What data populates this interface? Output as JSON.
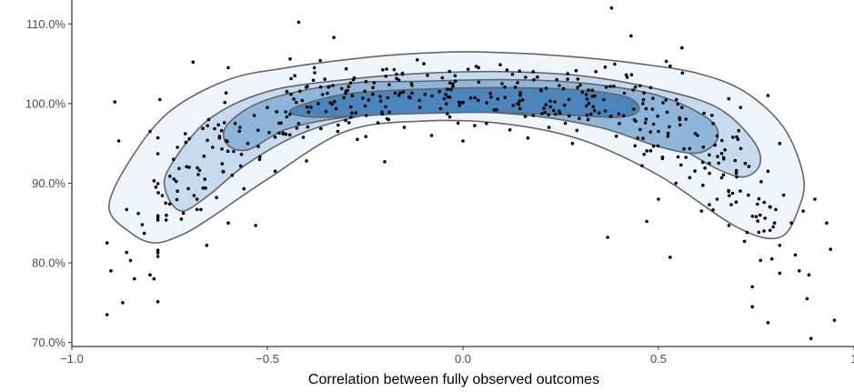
{
  "chart_data": {
    "type": "scatter",
    "title": "",
    "xlabel": "Correlation between fully observed outcomes",
    "ylabel": "",
    "xlim": [
      -1.0,
      1.0
    ],
    "ylim": [
      69.5,
      113.0
    ],
    "x_ticks": [
      -1.0,
      -0.5,
      0.0,
      0.5,
      1.0
    ],
    "x_tick_labels": [
      "−1.0",
      "−0.5",
      "0.0",
      "0.5",
      "1"
    ],
    "y_ticks": [
      70,
      80,
      90,
      100,
      110
    ],
    "y_tick_labels": [
      "70.0%",
      "80.0%",
      "90.0%",
      "100.0%",
      "110.0%"
    ],
    "grid": false,
    "legend": "none",
    "density_fill_colors": [
      "#f0f5fb",
      "#c6dbef",
      "#8db6da",
      "#4a85be"
    ],
    "contour_line_color": "#666666",
    "point_color": "#000000",
    "density_levels": [
      {
        "x": [
          -0.905,
          -0.85,
          -0.75,
          -0.6,
          -0.45,
          -0.3,
          -0.15,
          0.0,
          0.15,
          0.3,
          0.45,
          0.6,
          0.72,
          0.82,
          0.87,
          0.86,
          0.81,
          0.7,
          0.5,
          0.3,
          0.1,
          -0.1,
          -0.3,
          -0.5,
          -0.65,
          -0.72,
          -0.79,
          -0.85
        ],
        "y": [
          87,
          93,
          99,
          103,
          104.5,
          105.5,
          106.2,
          106.5,
          106.3,
          105.8,
          105,
          103.8,
          101.5,
          97,
          91,
          87,
          83.2,
          84.5,
          91,
          95.5,
          97.5,
          97.8,
          96.5,
          90.5,
          85.5,
          83.5,
          82.5,
          83.8
        ]
      },
      {
        "x": [
          -0.75,
          -0.65,
          -0.5,
          -0.3,
          -0.1,
          0.1,
          0.3,
          0.5,
          0.65,
          0.74,
          0.76,
          0.72,
          0.65,
          0.55,
          0.4,
          0.2,
          0.0,
          -0.2,
          -0.4,
          -0.55,
          -0.65,
          -0.72,
          -0.76
        ],
        "y": [
          92,
          98,
          101.5,
          103,
          103.8,
          104,
          103.5,
          101.8,
          99.5,
          95.5,
          92.5,
          90.8,
          91.8,
          94.5,
          97.5,
          99.2,
          99.5,
          99,
          96.5,
          92.5,
          88.5,
          86.5,
          89
        ]
      },
      {
        "x": [
          -0.6,
          -0.5,
          -0.3,
          -0.1,
          0.1,
          0.3,
          0.5,
          0.63,
          0.65,
          0.6,
          0.5,
          0.35,
          0.15,
          -0.1,
          -0.3,
          -0.45,
          -0.55,
          -0.605
        ],
        "y": [
          97.5,
          100.5,
          102.5,
          102.8,
          103,
          102.6,
          101,
          98,
          95.5,
          93.8,
          94.6,
          97,
          98.6,
          99,
          98.3,
          96.8,
          94.2,
          95
        ]
      },
      {
        "x": [
          -0.43,
          -0.3,
          -0.1,
          0.1,
          0.3,
          0.42,
          0.45,
          0.4,
          0.25,
          0.05,
          -0.15,
          -0.35,
          -0.43
        ],
        "y": [
          99.5,
          101.2,
          101.8,
          102,
          101.7,
          100.8,
          99.2,
          98.3,
          98.6,
          98.9,
          98.7,
          98.3,
          98.6
        ]
      }
    ],
    "points": [
      [
        -0.91,
        73.5
      ],
      [
        -0.9,
        79
      ],
      [
        -0.91,
        82.5
      ],
      [
        -0.89,
        100.2
      ],
      [
        -0.88,
        95.3
      ],
      [
        -0.87,
        75
      ],
      [
        -0.86,
        81.3
      ],
      [
        -0.85,
        80.3
      ],
      [
        -0.84,
        78
      ],
      [
        -0.83,
        86.2
      ],
      [
        -0.82,
        84.8
      ],
      [
        -0.815,
        83.7
      ],
      [
        -0.8,
        78.5
      ],
      [
        -0.79,
        78
      ],
      [
        -0.78,
        80.8
      ],
      [
        -0.785,
        89.5
      ],
      [
        -0.8,
        96.5
      ],
      [
        -0.775,
        100.5
      ],
      [
        -0.76,
        87.5
      ],
      [
        -0.74,
        93
      ],
      [
        -0.73,
        89
      ],
      [
        -0.72,
        85.5
      ],
      [
        -0.7,
        92
      ],
      [
        -0.68,
        88
      ],
      [
        -0.67,
        86.7
      ],
      [
        -0.66,
        90.5
      ],
      [
        -0.655,
        82.2
      ],
      [
        -0.64,
        94.5
      ],
      [
        -0.63,
        88.2
      ],
      [
        -0.6,
        85
      ],
      [
        -0.59,
        91
      ],
      [
        -0.57,
        97
      ],
      [
        -0.56,
        89.3
      ],
      [
        -0.55,
        95
      ],
      [
        -0.53,
        84.7
      ],
      [
        -0.52,
        93
      ],
      [
        -0.5,
        99.5
      ],
      [
        -0.48,
        91.5
      ],
      [
        -0.46,
        96.2
      ],
      [
        -0.45,
        101.5
      ],
      [
        -0.43,
        103.5
      ],
      [
        -0.42,
        97.5
      ],
      [
        -0.4,
        92.8
      ],
      [
        -0.38,
        104.5
      ],
      [
        -0.37,
        100
      ],
      [
        -0.35,
        99
      ],
      [
        -0.33,
        108.3
      ],
      [
        -0.32,
        96.5
      ],
      [
        -0.3,
        101.3
      ],
      [
        -0.28,
        103
      ],
      [
        -0.27,
        95.5
      ],
      [
        -0.25,
        99.7
      ],
      [
        -0.23,
        102
      ],
      [
        -0.21,
        100.3
      ],
      [
        -0.2,
        92.7
      ],
      [
        -0.19,
        98
      ],
      [
        -0.17,
        103.7
      ],
      [
        -0.15,
        97
      ],
      [
        -0.13,
        101.3
      ],
      [
        -0.11,
        99.5
      ],
      [
        -0.1,
        105
      ],
      [
        -0.08,
        96
      ],
      [
        -0.06,
        101.5
      ],
      [
        -0.04,
        98.7
      ],
      [
        -0.02,
        103.5
      ],
      [
        0.0,
        95.3
      ],
      [
        0.02,
        100.7
      ],
      [
        0.04,
        104.5
      ],
      [
        0.06,
        97.5
      ],
      [
        0.08,
        99.2
      ],
      [
        0.1,
        102.5
      ],
      [
        0.12,
        96.7
      ],
      [
        0.14,
        100
      ],
      [
        0.16,
        103.3
      ],
      [
        0.18,
        98.5
      ],
      [
        0.2,
        101.7
      ],
      [
        0.22,
        97
      ],
      [
        0.24,
        103
      ],
      [
        0.26,
        99.8
      ],
      [
        0.28,
        95
      ],
      [
        0.3,
        102.3
      ],
      [
        0.32,
        98
      ],
      [
        0.34,
        104
      ],
      [
        0.36,
        100.5
      ],
      [
        0.37,
        83.2
      ],
      [
        0.38,
        112
      ],
      [
        0.4,
        97.5
      ],
      [
        0.42,
        103.3
      ],
      [
        0.43,
        108.5
      ],
      [
        0.44,
        94.7
      ],
      [
        0.46,
        100
      ],
      [
        0.47,
        85.2
      ],
      [
        0.48,
        102
      ],
      [
        0.5,
        96.5
      ],
      [
        0.5,
        88
      ],
      [
        0.52,
        105.3
      ],
      [
        0.53,
        80.7
      ],
      [
        0.53,
        104.7
      ],
      [
        0.55,
        93.3
      ],
      [
        0.56,
        99.5
      ],
      [
        0.58,
        90.7
      ],
      [
        0.6,
        96
      ],
      [
        0.61,
        86.5
      ],
      [
        0.63,
        92.5
      ],
      [
        0.64,
        97.5
      ],
      [
        0.65,
        88
      ],
      [
        0.67,
        94.2
      ],
      [
        0.68,
        84.7
      ],
      [
        0.7,
        90.8
      ],
      [
        0.71,
        99.5
      ],
      [
        0.72,
        82.7
      ],
      [
        0.73,
        88.5
      ],
      [
        0.74,
        77
      ],
      [
        0.74,
        74.5
      ],
      [
        0.76,
        86
      ],
      [
        0.77,
        84
      ],
      [
        0.78,
        101
      ],
      [
        0.78,
        72.5
      ],
      [
        0.79,
        80.5
      ],
      [
        0.8,
        86.7
      ],
      [
        0.81,
        82.2
      ],
      [
        0.81,
        78.7
      ],
      [
        0.82,
        88.5
      ],
      [
        0.84,
        85
      ],
      [
        0.85,
        81
      ],
      [
        0.86,
        79
      ],
      [
        0.87,
        86.5
      ],
      [
        0.88,
        75.5
      ],
      [
        0.885,
        78.5
      ],
      [
        0.89,
        70.5
      ],
      [
        0.9,
        88
      ],
      [
        0.93,
        85
      ],
      [
        0.94,
        81.7
      ],
      [
        0.95,
        72.8
      ],
      [
        -0.86,
        86.7
      ],
      [
        -0.69,
        105.2
      ],
      [
        -0.6,
        104.5
      ],
      [
        -0.42,
        110.2
      ],
      [
        0.56,
        107
      ],
      [
        0.75,
        85.8
      ],
      [
        0.63,
        87.3
      ],
      [
        -0.73,
        94.5
      ],
      [
        -0.71,
        96.2
      ],
      [
        -0.79,
        90.3
      ],
      [
        -0.65,
        98
      ],
      [
        0.78,
        91.5
      ],
      [
        0.81,
        95
      ],
      [
        0.7,
        95.8
      ]
    ],
    "point_cloud_seed": 12345,
    "point_cloud_count": 360
  }
}
